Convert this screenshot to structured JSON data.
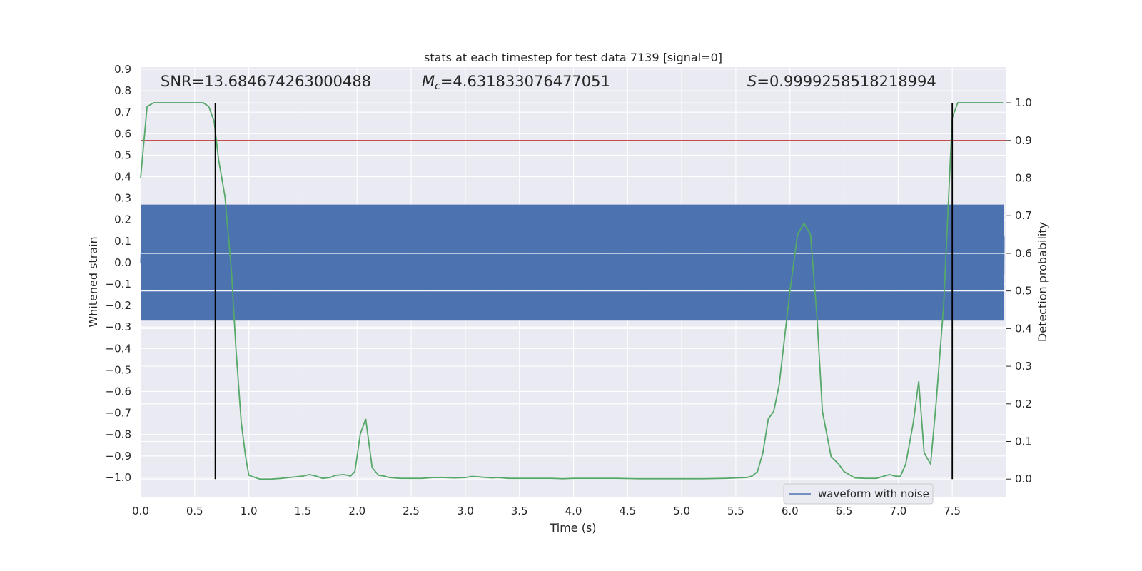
{
  "chart_data": {
    "type": "line",
    "title": "stats at each timestep for test data 7139 [signal=0]",
    "xlabel": "Time (s)",
    "ylabel": "Whitened strain",
    "y2label": "Detection probability",
    "xlim": [
      0.0,
      8.0
    ],
    "ylim": [
      -1.09,
      0.91
    ],
    "y2lim": [
      -0.047,
      1.095
    ],
    "x_ticks": [
      "0.0",
      "0.5",
      "1.0",
      "1.5",
      "2.0",
      "2.5",
      "3.0",
      "3.5",
      "4.0",
      "4.5",
      "5.0",
      "5.5",
      "6.0",
      "6.5",
      "7.0",
      "7.5"
    ],
    "y_ticks": [
      "0.9",
      "0.8",
      "0.7",
      "0.6",
      "0.5",
      "0.4",
      "0.3",
      "0.2",
      "0.1",
      "0.0",
      "−0.1",
      "−0.2",
      "−0.3",
      "−0.4",
      "−0.5",
      "−0.6",
      "−0.7",
      "−0.8",
      "−0.9",
      "−1.0"
    ],
    "y2_ticks": [
      "1.0",
      "0.9",
      "0.8",
      "0.7",
      "0.6",
      "0.5",
      "0.4",
      "0.3",
      "0.2",
      "0.1",
      "0.0"
    ],
    "grid": true,
    "legend_position": "lower-right",
    "annotations": {
      "snr": "SNR=13.684674263000488",
      "mc_symbol": "M",
      "mc_sub": "c",
      "mc_value": "=4.631833076477051",
      "s_symbol": "S",
      "s_value": "=0.9999258518218994"
    },
    "series": [
      {
        "name": "waveform with noise",
        "kind": "noise-waveform",
        "axis": "left",
        "color": "#4c72b0",
        "typical_amplitude": 0.25,
        "peak_max": 0.82,
        "peak_min": -1.0
      },
      {
        "kind": "probability",
        "axis": "right",
        "color": "#55a868",
        "x": [
          0.0,
          0.06,
          0.12,
          0.2,
          0.3,
          0.4,
          0.5,
          0.58,
          0.63,
          0.68,
          0.72,
          0.78,
          0.84,
          0.88,
          0.93,
          0.97,
          1.0,
          1.1,
          1.2,
          1.3,
          1.4,
          1.5,
          1.56,
          1.62,
          1.68,
          1.75,
          1.8,
          1.88,
          1.94,
          1.98,
          2.03,
          2.08,
          2.14,
          2.2,
          2.25,
          2.3,
          2.4,
          2.5,
          2.6,
          2.7,
          2.8,
          2.9,
          3.0,
          3.06,
          3.12,
          3.2,
          3.25,
          3.3,
          3.4,
          3.5,
          3.6,
          3.7,
          3.8,
          3.9,
          4.0,
          4.1,
          4.2,
          4.4,
          4.6,
          4.8,
          5.0,
          5.2,
          5.4,
          5.5,
          5.6,
          5.65,
          5.7,
          5.75,
          5.8,
          5.85,
          5.9,
          6.0,
          6.07,
          6.13,
          6.19,
          6.25,
          6.3,
          6.38,
          6.45,
          6.5,
          6.6,
          6.7,
          6.8,
          6.86,
          6.92,
          6.97,
          7.02,
          7.07,
          7.14,
          7.19,
          7.24,
          7.3,
          7.35,
          7.42,
          7.5,
          7.55,
          7.6,
          7.7,
          7.8,
          7.9,
          7.97
        ],
        "values": [
          0.8,
          0.99,
          1.0,
          1.0,
          1.0,
          1.0,
          1.0,
          1.0,
          0.99,
          0.95,
          0.85,
          0.75,
          0.55,
          0.35,
          0.15,
          0.06,
          0.01,
          0.0,
          0.0,
          0.002,
          0.005,
          0.008,
          0.012,
          0.008,
          0.002,
          0.004,
          0.01,
          0.012,
          0.008,
          0.02,
          0.12,
          0.16,
          0.03,
          0.01,
          0.008,
          0.004,
          0.002,
          0.002,
          0.002,
          0.004,
          0.004,
          0.003,
          0.004,
          0.007,
          0.006,
          0.004,
          0.003,
          0.004,
          0.002,
          0.002,
          0.002,
          0.002,
          0.002,
          0.001,
          0.002,
          0.002,
          0.002,
          0.002,
          0.001,
          0.001,
          0.001,
          0.001,
          0.002,
          0.003,
          0.004,
          0.008,
          0.02,
          0.07,
          0.16,
          0.18,
          0.25,
          0.5,
          0.65,
          0.68,
          0.65,
          0.43,
          0.18,
          0.06,
          0.04,
          0.02,
          0.003,
          0.002,
          0.002,
          0.007,
          0.012,
          0.008,
          0.007,
          0.04,
          0.15,
          0.26,
          0.07,
          0.04,
          0.2,
          0.46,
          0.96,
          1.0,
          1.0,
          1.0,
          1.0,
          1.0,
          1.0
        ]
      }
    ],
    "threshold": {
      "value": 0.9,
      "axis": "right",
      "color": "#c44e52"
    },
    "vlines": [
      {
        "x": 0.69,
        "color": "#000000"
      },
      {
        "x": 7.5,
        "color": "#000000"
      }
    ]
  }
}
